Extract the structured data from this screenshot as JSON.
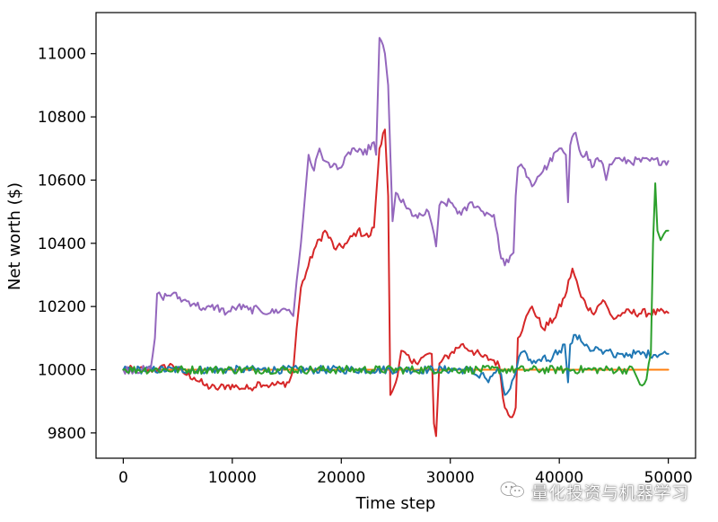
{
  "chart_data": {
    "type": "line",
    "title": "",
    "xlabel": "Time step",
    "ylabel": "Net worth ($)",
    "xlim": [
      -2500,
      52500
    ],
    "ylim": [
      9720,
      11130
    ],
    "xticks": [
      0,
      10000,
      20000,
      30000,
      40000,
      50000
    ],
    "yticks": [
      9800,
      10000,
      10200,
      10400,
      10600,
      10800,
      11000
    ],
    "grid": false,
    "legend": "none",
    "series": [
      {
        "color": "#ff7f0e",
        "x": [
          0,
          5000,
          10000,
          20000,
          30000,
          40000,
          48000,
          50000
        ],
        "y": [
          10000,
          10000,
          10000,
          10000,
          10000,
          10000,
          10000,
          10000
        ]
      },
      {
        "color": "#d62728",
        "x": [
          0,
          2800,
          3200,
          4500,
          5500,
          6500,
          7500,
          8500,
          9500,
          10500,
          11500,
          12500,
          13500,
          14500,
          15200,
          15600,
          15900,
          16300,
          16800,
          17500,
          18500,
          19500,
          20500,
          21500,
          22500,
          23000,
          23500,
          24000,
          24300,
          24500,
          25000,
          25500,
          26500,
          27500,
          28300,
          28500,
          28700,
          29000,
          30000,
          31000,
          32000,
          33000,
          34000,
          34500,
          35000,
          35500,
          36000,
          36200,
          36800,
          37500,
          38500,
          39500,
          40500,
          41200,
          42000,
          43000,
          44000,
          45000,
          45800,
          46000,
          50000
        ],
        "y": [
          10000,
          10000,
          10000,
          10015,
          9990,
          9975,
          9950,
          9940,
          9950,
          9945,
          9940,
          9960,
          9950,
          9955,
          9960,
          10000,
          10130,
          10260,
          10310,
          10380,
          10440,
          10380,
          10400,
          10440,
          10420,
          10450,
          10700,
          10760,
          10550,
          9920,
          9960,
          10060,
          10020,
          10040,
          10050,
          9830,
          9790,
          10020,
          10050,
          10080,
          10060,
          10040,
          10030,
          10010,
          9880,
          9850,
          9880,
          10100,
          10150,
          10200,
          10130,
          10160,
          10230,
          10320,
          10230,
          10180,
          10220,
          10160,
          10180,
          10180,
          10180
        ]
      },
      {
        "color": "#1f77b4",
        "x": [
          0,
          31800,
          32500,
          33000,
          33500,
          34000,
          34500,
          35000,
          35500,
          36000,
          36300,
          37000,
          37500,
          38000,
          38500,
          39000,
          39500,
          40000,
          40500,
          40800,
          41000,
          41500,
          42000,
          42500,
          43000,
          43500,
          44000,
          44500,
          45000,
          45500,
          45800,
          50000
        ],
        "y": [
          10000,
          10000,
          9980,
          9990,
          9960,
          9990,
          10000,
          9920,
          9940,
          9990,
          10040,
          10050,
          10020,
          10030,
          10040,
          10030,
          10050,
          10060,
          10080,
          9960,
          10080,
          10110,
          10090,
          10080,
          10060,
          10070,
          10050,
          10060,
          10040,
          10050,
          10050,
          10050
        ]
      },
      {
        "color": "#9467bd",
        "x": [
          0,
          2000,
          2500,
          2900,
          3100,
          3500,
          4500,
          5500,
          6500,
          7500,
          8500,
          9500,
          10500,
          11500,
          12500,
          13500,
          14500,
          15200,
          15600,
          15900,
          16300,
          16700,
          17000,
          17500,
          18000,
          18500,
          19000,
          19500,
          20000,
          21000,
          22000,
          23000,
          23200,
          23500,
          24000,
          24300,
          24700,
          25000,
          26000,
          27000,
          28000,
          28300,
          28500,
          28700,
          29000,
          30000,
          31000,
          32000,
          33000,
          34000,
          34500,
          35000,
          35500,
          35800,
          36000,
          36200,
          36500,
          37000,
          37500,
          38000,
          39000,
          40000,
          40600,
          40800,
          41000,
          41500,
          42000,
          42500,
          43000,
          43500,
          44000,
          44300,
          44600,
          45000,
          45500,
          45800,
          50000
        ],
        "y": [
          10000,
          10000,
          10000,
          10100,
          10240,
          10230,
          10240,
          10220,
          10210,
          10190,
          10200,
          10180,
          10200,
          10190,
          10190,
          10180,
          10190,
          10190,
          10170,
          10280,
          10400,
          10560,
          10680,
          10630,
          10700,
          10660,
          10640,
          10650,
          10640,
          10700,
          10680,
          10720,
          10680,
          11050,
          11000,
          10900,
          10470,
          10560,
          10510,
          10480,
          10500,
          10460,
          10430,
          10390,
          10520,
          10530,
          10490,
          10530,
          10500,
          10490,
          10380,
          10330,
          10360,
          10370,
          10550,
          10640,
          10650,
          10610,
          10580,
          10610,
          10650,
          10700,
          10680,
          10530,
          10710,
          10750,
          10680,
          10690,
          10640,
          10670,
          10650,
          10600,
          10650,
          10660,
          10670,
          10660,
          10660
        ]
      },
      {
        "color": "#2ca02c",
        "x": [
          0,
          10000,
          20000,
          30000,
          40000,
          46800,
          47200,
          47600,
          48000,
          48400,
          48600,
          48800,
          49000,
          49300,
          49600,
          50000
        ],
        "y": [
          10000,
          10000,
          10000,
          10000,
          10000,
          10000,
          9970,
          9950,
          9970,
          10050,
          10400,
          10590,
          10440,
          10410,
          10430,
          10440
        ]
      }
    ]
  },
  "watermark": {
    "icon": "wechat-icon",
    "text": "量化投资与机器学习"
  }
}
